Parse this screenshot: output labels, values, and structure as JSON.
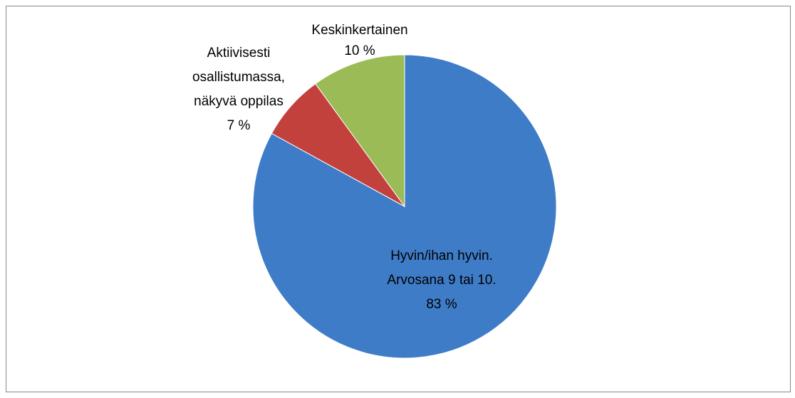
{
  "chart_data": {
    "type": "pie",
    "categories": [
      [
        "Hyvin/ihan hyvin.",
        "Arvosana 9 tai 10."
      ],
      [
        "Aktiivisesti",
        "osallistumassa,",
        "näkyvä oppilas"
      ],
      [
        "Keskinkertainen"
      ]
    ],
    "values": [
      83,
      7,
      10
    ],
    "value_labels": [
      "83 %",
      "7 %",
      "10 %"
    ],
    "colors": [
      "#3f7cc8",
      "#c3413d",
      "#9abb55"
    ]
  }
}
